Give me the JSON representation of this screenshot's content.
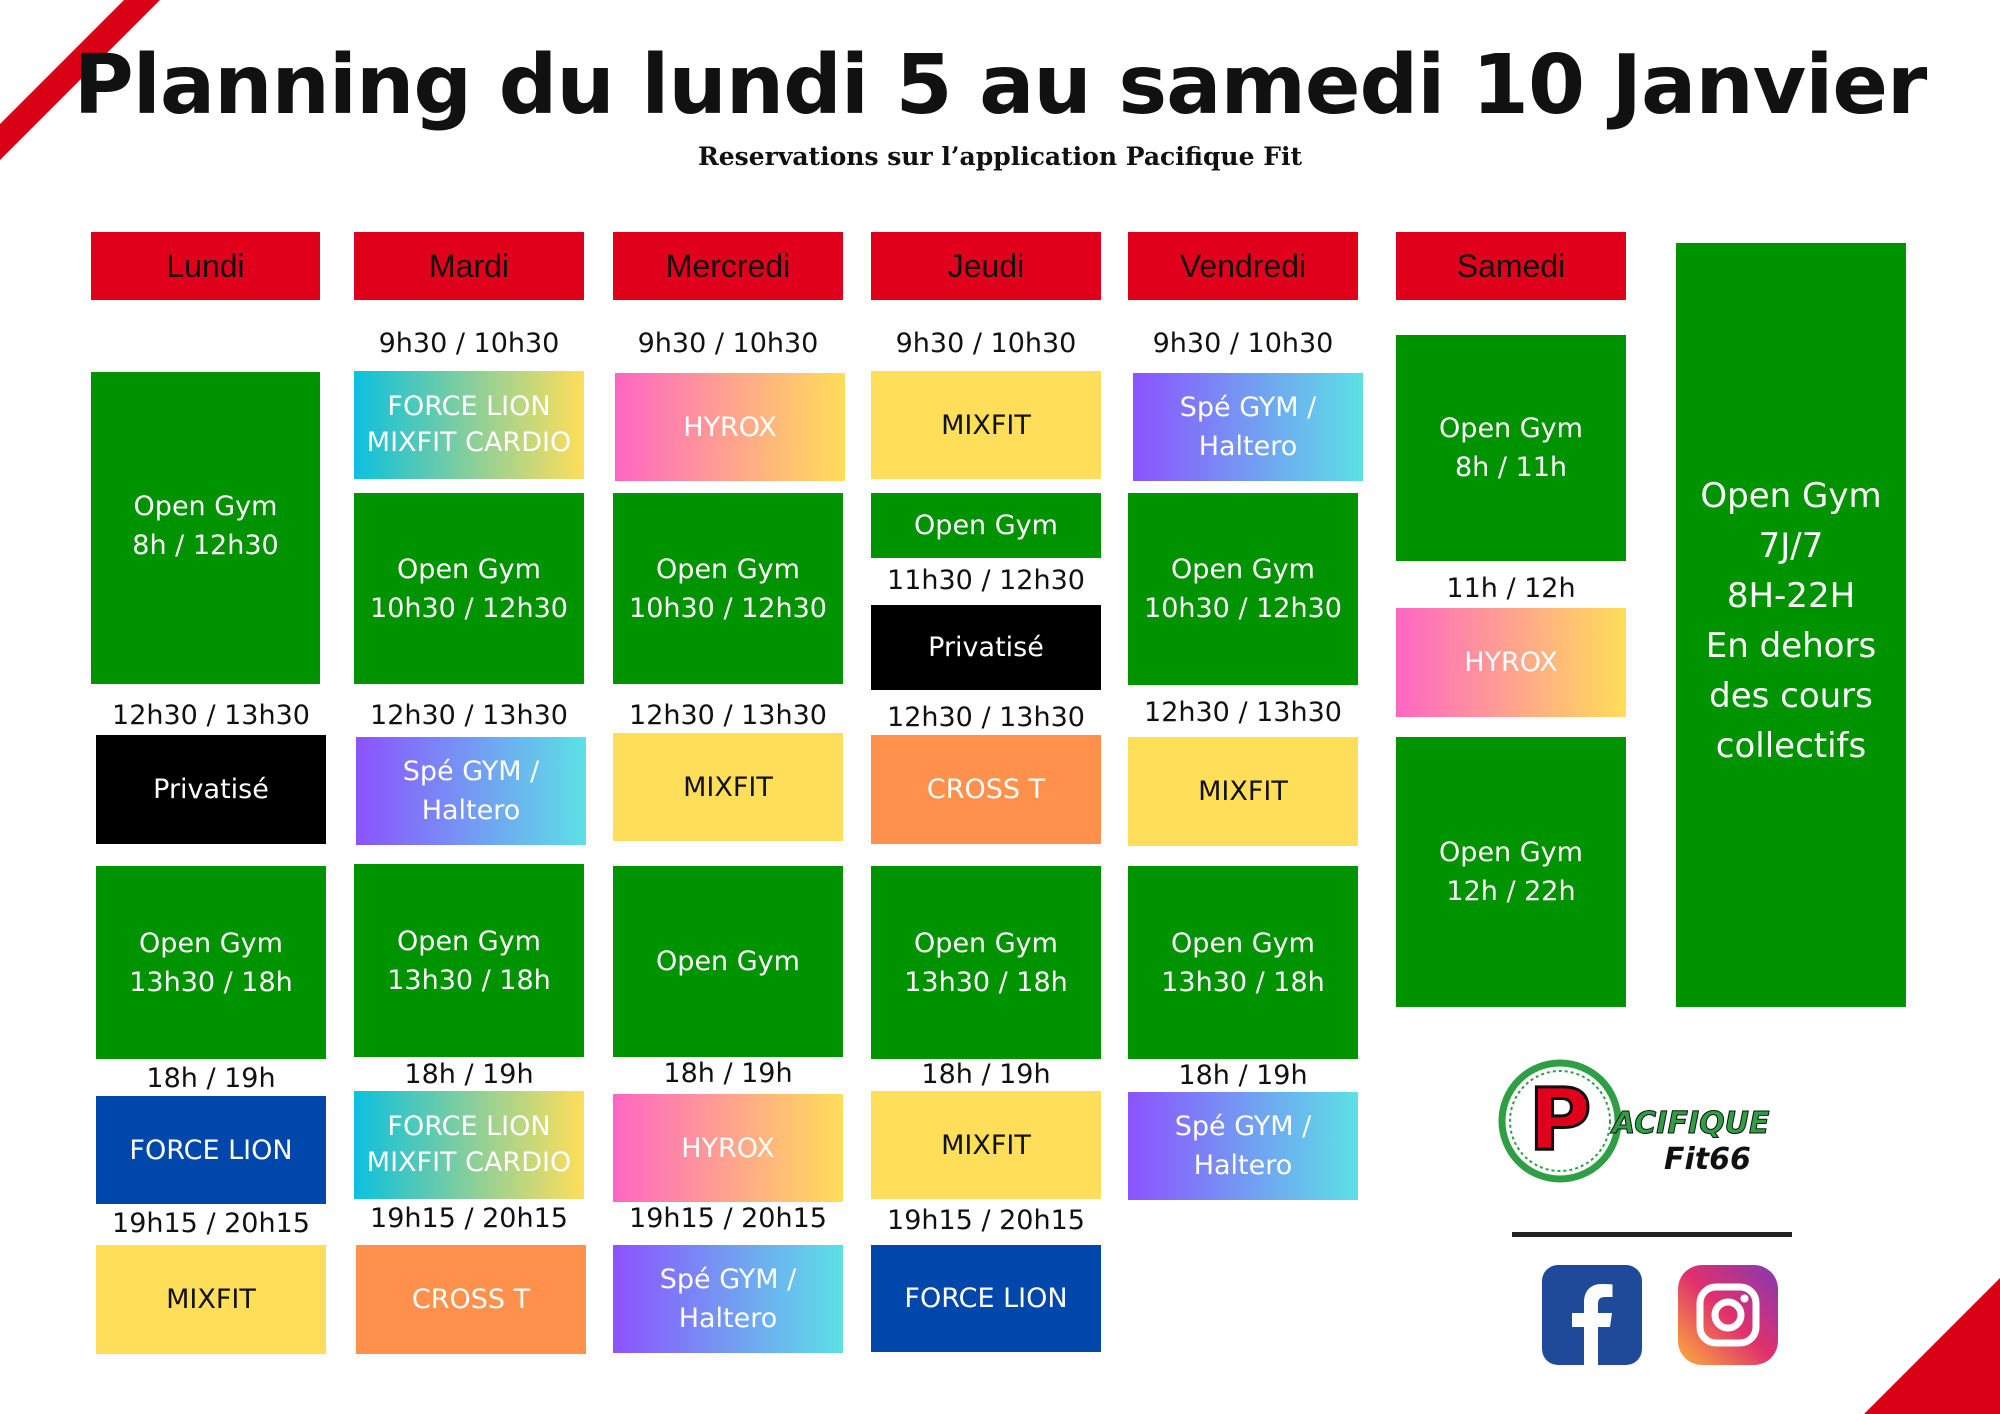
{
  "header": {
    "title": "Planning du lundi 5 au samedi 10 Janvier",
    "subtitle": "Reservations sur l’application Pacifique Fit"
  },
  "days": [
    "Lundi",
    "Mardi",
    "Mercredi",
    "Jeudi",
    "Vendredi",
    "Samedi"
  ],
  "times": {
    "t0930": "9h30 / 10h30",
    "t1130": "11h30 / 12h30",
    "t1230": "12h30 / 13h30",
    "t1112": "11h / 12h",
    "t1819": "18h / 19h",
    "t1915": "19h15 / 20h15"
  },
  "classes": {
    "open_gym": "Open Gym",
    "privatise": "Privatisé",
    "mixfit": "MIXFIT",
    "hyrox": "HYROX",
    "cross_t": "CROSS T",
    "force_lion": "FORCE LION",
    "mixfit_cardio": "MIXFIT CARDIO",
    "spe_gym": "Spé GYM /",
    "haltero": "Haltero"
  },
  "slots": {
    "og_8_1230": "8h / 12h30",
    "og_1030_1230": "10h30 / 12h30",
    "og_1330_18": "13h30 / 18h",
    "og_8_11": "8h / 11h",
    "og_12_22": "12h / 22h"
  },
  "open_gym_side": {
    "line1": "Open Gym",
    "line2": "7J/7",
    "line3": "8H-22H",
    "line4": "En dehors",
    "line5": "des cours",
    "line6": "collectifs"
  },
  "logo": {
    "letter": "P",
    "text1": "ACIFIQUE",
    "text2": "Fit66"
  },
  "social": [
    "facebook-icon",
    "instagram-icon"
  ],
  "colors": {
    "day_header": "#e0001b",
    "open_gym": "#009300",
    "mixfit": "#ffde59",
    "cross_t": "#ff914d",
    "force_lion": "#0047ab",
    "privatise": "#000000"
  }
}
